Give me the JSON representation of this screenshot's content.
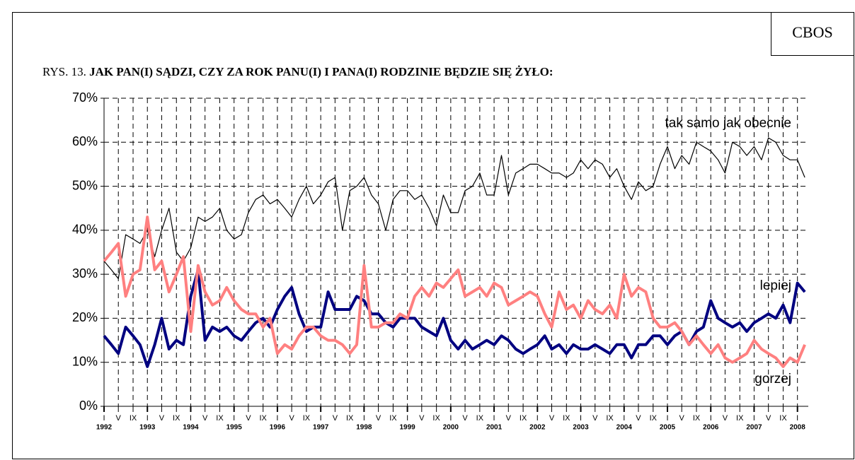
{
  "source": "CBOS",
  "figure_label": "RYS. 13.",
  "chart_data": {
    "type": "line",
    "title": "JAK PAN(I) SĄDZI, CZY ZA ROK PANU(I) I PANA(I) RODZINIE BĘDZIE SIĘ ŻYŁO:",
    "x": [
      1992,
      1992.17,
      1992.33,
      1992.5,
      1992.67,
      1992.83,
      1993,
      1993.17,
      1993.33,
      1993.5,
      1993.67,
      1993.83,
      1994,
      1994.17,
      1994.33,
      1994.5,
      1994.67,
      1994.83,
      1995,
      1995.17,
      1995.33,
      1995.5,
      1995.67,
      1995.83,
      1996,
      1996.17,
      1996.33,
      1996.5,
      1996.67,
      1996.83,
      1997,
      1997.17,
      1997.33,
      1997.5,
      1997.67,
      1997.83,
      1998,
      1998.17,
      1998.33,
      1998.5,
      1998.67,
      1998.83,
      1999,
      1999.17,
      1999.33,
      1999.5,
      1999.67,
      1999.83,
      2000,
      2000.17,
      2000.33,
      2000.5,
      2000.67,
      2000.83,
      2001,
      2001.17,
      2001.33,
      2001.5,
      2001.67,
      2001.83,
      2002,
      2002.17,
      2002.33,
      2002.5,
      2002.67,
      2002.83,
      2003,
      2003.17,
      2003.33,
      2003.5,
      2003.67,
      2003.83,
      2004,
      2004.17,
      2004.33,
      2004.5,
      2004.67,
      2004.83,
      2005,
      2005.17,
      2005.33,
      2005.5,
      2005.67,
      2005.83,
      2006,
      2006.17,
      2006.33,
      2006.5,
      2006.67,
      2006.83,
      2007,
      2007.17,
      2007.33,
      2007.5,
      2007.67,
      2007.83,
      2008,
      2008.17
    ],
    "series": [
      {
        "name": "tak samo jak obecnie",
        "color": "#000000",
        "width": 1.2,
        "values": [
          33,
          31,
          29,
          39,
          38,
          37,
          40,
          34,
          40,
          45,
          35,
          33,
          36,
          43,
          42,
          43,
          45,
          40,
          38,
          39,
          44,
          47,
          48,
          46,
          47,
          45,
          43,
          47,
          50,
          46,
          48,
          51,
          52,
          40,
          49,
          50,
          52,
          48,
          46,
          40,
          47,
          49,
          49,
          47,
          48,
          45,
          41,
          48,
          44,
          44,
          49,
          50,
          53,
          48,
          48,
          57,
          48,
          53,
          54,
          55,
          55,
          54,
          53,
          53,
          52,
          53,
          56,
          54,
          56,
          55,
          52,
          54,
          50,
          47,
          51,
          49,
          50,
          55,
          59,
          54,
          57,
          55,
          60,
          59,
          58,
          56,
          53,
          60,
          59,
          57,
          59,
          56,
          61,
          60,
          57,
          56,
          56,
          52
        ]
      },
      {
        "name": "lepiej",
        "color": "#000080",
        "width": 4,
        "values": [
          16,
          14,
          12,
          18,
          16,
          14,
          9,
          14,
          20,
          13,
          15,
          14,
          25,
          31,
          15,
          18,
          17,
          18,
          16,
          15,
          17,
          19,
          20,
          18,
          22,
          25,
          27,
          21,
          17,
          18,
          18,
          26,
          22,
          22,
          22,
          25,
          24,
          21,
          21,
          19,
          18,
          20,
          20,
          20,
          18,
          17,
          16,
          20,
          15,
          13,
          15,
          13,
          14,
          15,
          14,
          16,
          15,
          13,
          12,
          13,
          14,
          16,
          13,
          14,
          12,
          14,
          13,
          13,
          14,
          13,
          12,
          14,
          14,
          11,
          14,
          14,
          16,
          16,
          14,
          16,
          17,
          14,
          17,
          18,
          24,
          20,
          19,
          18,
          19,
          17,
          19,
          20,
          21,
          20,
          23,
          19,
          28,
          26
        ]
      },
      {
        "name": "gorzej",
        "color": "#ff8080",
        "width": 4,
        "values": [
          33,
          35,
          37,
          25,
          30,
          31,
          43,
          31,
          33,
          26,
          30,
          34,
          17,
          32,
          26,
          23,
          24,
          27,
          24,
          22,
          21,
          21,
          18,
          20,
          12,
          14,
          13,
          16,
          18,
          18,
          16,
          15,
          15,
          14,
          12,
          14,
          32,
          18,
          18,
          19,
          19,
          21,
          20,
          25,
          27,
          25,
          28,
          27,
          29,
          31,
          25,
          26,
          27,
          25,
          28,
          27,
          23,
          24,
          25,
          26,
          25,
          21,
          18,
          26,
          22,
          23,
          20,
          24,
          22,
          21,
          23,
          20,
          30,
          25,
          27,
          26,
          20,
          18,
          18,
          19,
          17,
          14,
          16,
          14,
          12,
          14,
          11,
          10,
          11,
          12,
          15,
          13,
          12,
          11,
          9,
          11,
          10,
          14
        ]
      }
    ],
    "xlim": [
      1992,
      2008.25
    ],
    "xticks": [
      {
        "value": 1992,
        "label": "I"
      },
      {
        "value": 1992.33,
        "label": "V"
      },
      {
        "value": 1992.67,
        "label": "IX"
      },
      {
        "value": 1993,
        "label": "I"
      },
      {
        "value": 1993.33,
        "label": "V"
      },
      {
        "value": 1993.67,
        "label": "IX"
      },
      {
        "value": 1994,
        "label": "I"
      },
      {
        "value": 1994.33,
        "label": "V"
      },
      {
        "value": 1994.67,
        "label": "IX"
      },
      {
        "value": 1995,
        "label": "I"
      },
      {
        "value": 1995.33,
        "label": "V"
      },
      {
        "value": 1995.67,
        "label": "IX"
      },
      {
        "value": 1996,
        "label": "I"
      },
      {
        "value": 1996.33,
        "label": "V"
      },
      {
        "value": 1996.67,
        "label": "IX"
      },
      {
        "value": 1997,
        "label": "I"
      },
      {
        "value": 1997.33,
        "label": "V"
      },
      {
        "value": 1997.67,
        "label": "IX"
      },
      {
        "value": 1998,
        "label": "I"
      },
      {
        "value": 1998.33,
        "label": "V"
      },
      {
        "value": 1998.67,
        "label": "IX"
      },
      {
        "value": 1999,
        "label": "I"
      },
      {
        "value": 1999.33,
        "label": "V"
      },
      {
        "value": 1999.67,
        "label": "IX"
      },
      {
        "value": 2000,
        "label": "I"
      },
      {
        "value": 2000.33,
        "label": "V"
      },
      {
        "value": 2000.67,
        "label": "IX"
      },
      {
        "value": 2001,
        "label": "I"
      },
      {
        "value": 2001.33,
        "label": "V"
      },
      {
        "value": 2001.67,
        "label": "IX"
      },
      {
        "value": 2002,
        "label": "I"
      },
      {
        "value": 2002.33,
        "label": "V"
      },
      {
        "value": 2002.67,
        "label": "IX"
      },
      {
        "value": 2003,
        "label": "I"
      },
      {
        "value": 2003.33,
        "label": "V"
      },
      {
        "value": 2003.67,
        "label": "IX"
      },
      {
        "value": 2004,
        "label": "I"
      },
      {
        "value": 2004.33,
        "label": "V"
      },
      {
        "value": 2004.67,
        "label": "IX"
      },
      {
        "value": 2005,
        "label": "I"
      },
      {
        "value": 2005.33,
        "label": "V"
      },
      {
        "value": 2005.67,
        "label": "IX"
      },
      {
        "value": 2006,
        "label": "I"
      },
      {
        "value": 2006.33,
        "label": "V"
      },
      {
        "value": 2006.67,
        "label": "IX"
      },
      {
        "value": 2007,
        "label": "I"
      },
      {
        "value": 2007.33,
        "label": "V"
      },
      {
        "value": 2007.67,
        "label": "IX"
      },
      {
        "value": 2008,
        "label": "I"
      }
    ],
    "year_ticks": [
      1992,
      1993,
      1994,
      1995,
      1996,
      1997,
      1998,
      1999,
      2000,
      2001,
      2002,
      2003,
      2004,
      2005,
      2006,
      2007,
      2008
    ],
    "ylim": [
      0,
      70
    ],
    "yticks": [
      {
        "value": 0,
        "label": "0%"
      },
      {
        "value": 10,
        "label": "10%"
      },
      {
        "value": 20,
        "label": "20%"
      },
      {
        "value": 30,
        "label": "30%"
      },
      {
        "value": 40,
        "label": "40%"
      },
      {
        "value": 50,
        "label": "50%"
      },
      {
        "value": 60,
        "label": "60%"
      },
      {
        "value": 70,
        "label": "70%"
      }
    ],
    "grid": true
  }
}
